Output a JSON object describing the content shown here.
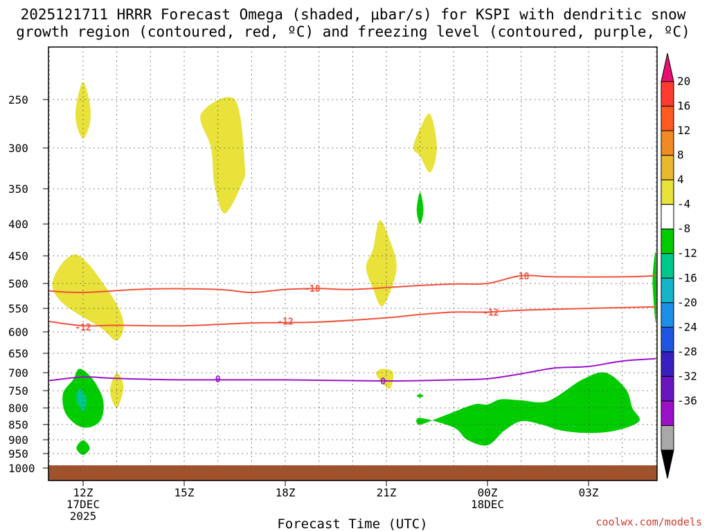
{
  "chart_data": {
    "type": "contour-cross-section",
    "title_lines": [
      "2025121711 HRRR Forecast Omega (shaded, μbar/s) for KSPI with dendritic snow",
      "growth region (contoured, red, ºC) and freezing level (contoured, purple, ºC)"
    ],
    "xlabel": "Forecast Time (UTC)",
    "x_range_hours": [
      -1,
      17
    ],
    "x_ticks": [
      {
        "hour": 0,
        "lines": [
          "12Z",
          "17DEC",
          "2025"
        ]
      },
      {
        "hour": 3,
        "lines": [
          "15Z"
        ]
      },
      {
        "hour": 6,
        "lines": [
          "18Z"
        ]
      },
      {
        "hour": 9,
        "lines": [
          "21Z"
        ]
      },
      {
        "hour": 12,
        "lines": [
          "00Z",
          "18DEC"
        ]
      },
      {
        "hour": 15,
        "lines": [
          "03Z"
        ]
      }
    ],
    "y_ticks_hpa": [
      250,
      300,
      350,
      400,
      450,
      500,
      550,
      600,
      650,
      700,
      750,
      800,
      850,
      900,
      950,
      1000
    ],
    "colorbar": {
      "labels": [
        "20",
        "16",
        "12",
        "8",
        "4",
        "-4",
        "-8",
        "-12",
        "-16",
        "-20",
        "-24",
        "-28",
        "-32",
        "-36"
      ],
      "colors": [
        "#e8106e",
        "#ff3b30",
        "#ff5a1f",
        "#f08a24",
        "#e8b82e",
        "#e8e23a",
        "#ffffff",
        "#00cc00",
        "#00c88c",
        "#16b4c8",
        "#1e8fe8",
        "#1f55e0",
        "#3a1fc0",
        "#6a16c0",
        "#9c0fc8",
        "#a8a8a8",
        "#000000"
      ]
    },
    "contours": [
      {
        "name": "dgz-minus-18",
        "label": "-18",
        "color": "#f0503c",
        "points": [
          [
            -1,
            515
          ],
          [
            0,
            518
          ],
          [
            2,
            511
          ],
          [
            4,
            512
          ],
          [
            5,
            518
          ],
          [
            6,
            512
          ],
          [
            7,
            510
          ],
          [
            8,
            512
          ],
          [
            10,
            504
          ],
          [
            11,
            501
          ],
          [
            12,
            500
          ],
          [
            13,
            486
          ],
          [
            14,
            488
          ],
          [
            16,
            488
          ],
          [
            17,
            486
          ]
        ],
        "labels_at": [
          [
            6.8,
            510
          ],
          [
            13.0,
            486
          ]
        ]
      },
      {
        "name": "dgz-minus-12",
        "label": "-12",
        "color": "#f0503c",
        "points": [
          [
            -1,
            578
          ],
          [
            0,
            587
          ],
          [
            1,
            586
          ],
          [
            3,
            587
          ],
          [
            5,
            581
          ],
          [
            7,
            579
          ],
          [
            9,
            570
          ],
          [
            10,
            563
          ],
          [
            11,
            558
          ],
          [
            12,
            558
          ],
          [
            13,
            554
          ],
          [
            15,
            550
          ],
          [
            17,
            547
          ]
        ],
        "labels_at": [
          [
            0.0,
            590
          ],
          [
            6.0,
            577
          ],
          [
            12.1,
            558
          ]
        ]
      },
      {
        "name": "freezing-level",
        "label": "0",
        "color": "#9a12c8",
        "points": [
          [
            -1,
            722
          ],
          [
            0,
            712
          ],
          [
            1,
            716
          ],
          [
            3,
            720
          ],
          [
            6,
            720
          ],
          [
            9,
            723
          ],
          [
            11,
            720
          ],
          [
            12,
            717
          ],
          [
            13,
            703
          ],
          [
            14,
            688
          ],
          [
            15,
            684
          ],
          [
            16,
            670
          ],
          [
            17,
            664
          ]
        ],
        "labels_at": [
          [
            4.0,
            717
          ],
          [
            8.9,
            723
          ]
        ]
      }
    ],
    "shaded_regions": [
      {
        "name": "omega-plus-4-a",
        "value": 4,
        "color": "#e8e23a",
        "points": [
          [
            -0.2,
            255
          ],
          [
            0,
            232
          ],
          [
            0.2,
            255
          ],
          [
            0.2,
            275
          ],
          [
            0,
            290
          ],
          [
            -0.2,
            275
          ]
        ]
      },
      {
        "name": "omega-plus-4-b",
        "value": 4,
        "color": "#e8e23a",
        "points": [
          [
            3.5,
            265
          ],
          [
            4.5,
            250
          ],
          [
            4.8,
            320
          ],
          [
            4.7,
            345
          ],
          [
            4.2,
            385
          ],
          [
            3.9,
            345
          ],
          [
            3.8,
            300
          ]
        ]
      },
      {
        "name": "omega-plus-4-c",
        "value": 4,
        "color": "#e8e23a",
        "points": [
          [
            10.0,
            280
          ],
          [
            10.3,
            265
          ],
          [
            10.5,
            300
          ],
          [
            10.3,
            330
          ],
          [
            10.0,
            310
          ],
          [
            9.8,
            300
          ]
        ]
      },
      {
        "name": "omega-plus-4-d",
        "value": 4,
        "color": "#e8e23a",
        "points": [
          [
            -0.2,
            448
          ],
          [
            0.8,
            520
          ],
          [
            1.2,
            580
          ],
          [
            1.0,
            620
          ],
          [
            0.5,
            590
          ],
          [
            -0.6,
            540
          ],
          [
            -0.9,
            495
          ]
        ]
      },
      {
        "name": "omega-plus-4-e",
        "value": 4,
        "color": "#e8e23a",
        "points": [
          [
            8.8,
            395
          ],
          [
            9.1,
            425
          ],
          [
            9.3,
            475
          ],
          [
            8.9,
            545
          ],
          [
            8.6,
            510
          ],
          [
            8.4,
            470
          ],
          [
            8.6,
            440
          ]
        ]
      },
      {
        "name": "omega-plus-4-f",
        "value": 4,
        "color": "#e8e23a",
        "points": [
          [
            1.0,
            700
          ],
          [
            1.2,
            740
          ],
          [
            1.0,
            800
          ],
          [
            0.8,
            750
          ]
        ]
      },
      {
        "name": "omega-plus-4-g",
        "value": 4,
        "color": "#e8e23a",
        "points": [
          [
            8.9,
            690
          ],
          [
            9.2,
            700
          ],
          [
            9.1,
            745
          ],
          [
            8.8,
            720
          ],
          [
            8.7,
            700
          ]
        ]
      },
      {
        "name": "omega-minus-4-a",
        "value": -4,
        "color": "#00cc00",
        "points": [
          [
            -0.1,
            690
          ],
          [
            0.3,
            720
          ],
          [
            0.6,
            780
          ],
          [
            0.5,
            840
          ],
          [
            0,
            860
          ],
          [
            -0.5,
            820
          ],
          [
            -0.6,
            760
          ],
          [
            -0.3,
            720
          ]
        ]
      },
      {
        "name": "omega-minus-8-a",
        "value": -8,
        "color": "#00c88c",
        "points": [
          [
            -0.1,
            745
          ],
          [
            0.1,
            775
          ],
          [
            0,
            810
          ],
          [
            -0.2,
            775
          ]
        ]
      },
      {
        "name": "omega-minus-4-b",
        "value": -4,
        "color": "#00cc00",
        "points": [
          [
            0,
            902
          ],
          [
            0.2,
            930
          ],
          [
            0,
            955
          ],
          [
            -0.2,
            930
          ]
        ]
      },
      {
        "name": "omega-minus-4-c",
        "value": -4,
        "color": "#00cc00",
        "points": [
          [
            10.0,
            355
          ],
          [
            10.1,
            380
          ],
          [
            10.0,
            400
          ],
          [
            9.9,
            380
          ]
        ]
      },
      {
        "name": "omega-minus-4-d",
        "value": -4,
        "color": "#00cc00",
        "points": [
          [
            10.0,
            760
          ],
          [
            10.1,
            765
          ],
          [
            10.0,
            770
          ],
          [
            9.9,
            765
          ]
        ]
      },
      {
        "name": "omega-minus-4-e",
        "value": -4,
        "color": "#00cc00",
        "points": [
          [
            16.9,
            495
          ],
          [
            17,
            445
          ],
          [
            17,
            580
          ]
        ]
      },
      {
        "name": "omega-minus-4-f",
        "value": -4,
        "color": "#00cc00",
        "points": [
          [
            12.0,
            790
          ],
          [
            12.4,
            775
          ],
          [
            13.0,
            778
          ],
          [
            13.8,
            780
          ],
          [
            14.8,
            720
          ],
          [
            15.5,
            700
          ],
          [
            16.1,
            745
          ],
          [
            16.3,
            800
          ],
          [
            16.5,
            840
          ],
          [
            15.8,
            870
          ],
          [
            15.0,
            878
          ],
          [
            14.2,
            870
          ],
          [
            13.6,
            850
          ],
          [
            13.0,
            840
          ],
          [
            12.5,
            870
          ],
          [
            12.0,
            920
          ],
          [
            11.4,
            900
          ],
          [
            11.0,
            860
          ],
          [
            10.0,
            830
          ],
          [
            10.0,
            850
          ],
          [
            10.8,
            820
          ],
          [
            11.6,
            790
          ]
        ]
      }
    ],
    "ground_color": "#a0522d"
  },
  "credit": "coolwx.com/models"
}
